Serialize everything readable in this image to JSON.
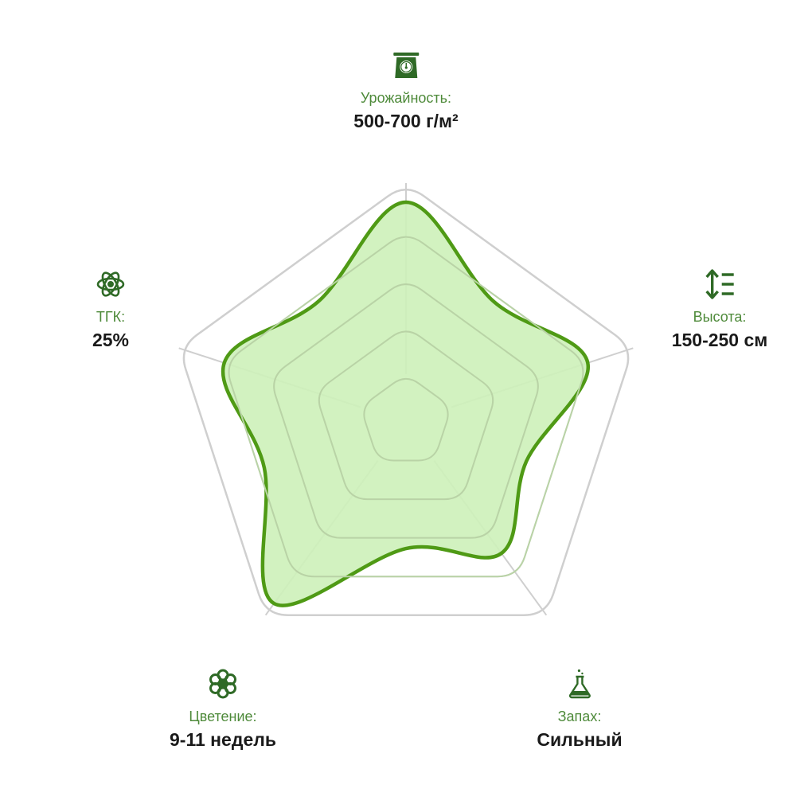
{
  "colors": {
    "grid": "#cfcfcf",
    "inner_grid": "#b9d3a6",
    "fill": "#cdf1b9",
    "stroke": "#4f9a15",
    "icon": "#2f6a26",
    "label": "#4e8a3a",
    "value": "#1a1a1a"
  },
  "chart_data": {
    "type": "radar",
    "levels": 5,
    "range": [
      0,
      5
    ],
    "axes": [
      {
        "key": "yield",
        "label": "Урожайность:",
        "value": "500-700 г/м²",
        "icon": "scale-icon",
        "score": 4.6
      },
      {
        "key": "height",
        "label": "Высота:",
        "value": "150-250 см",
        "icon": "height-icon",
        "score": 4.0
      },
      {
        "key": "smell",
        "label": "Запах:",
        "value": "Сильный",
        "icon": "flask-icon",
        "score": 3.4
      },
      {
        "key": "flowering",
        "label": "Цветение:",
        "value": "9-11 недель",
        "icon": "flower-icon",
        "score": 4.7
      },
      {
        "key": "thc",
        "label": "ТГК:",
        "value": "25%",
        "icon": "atom-icon",
        "score": 4.0
      }
    ]
  }
}
